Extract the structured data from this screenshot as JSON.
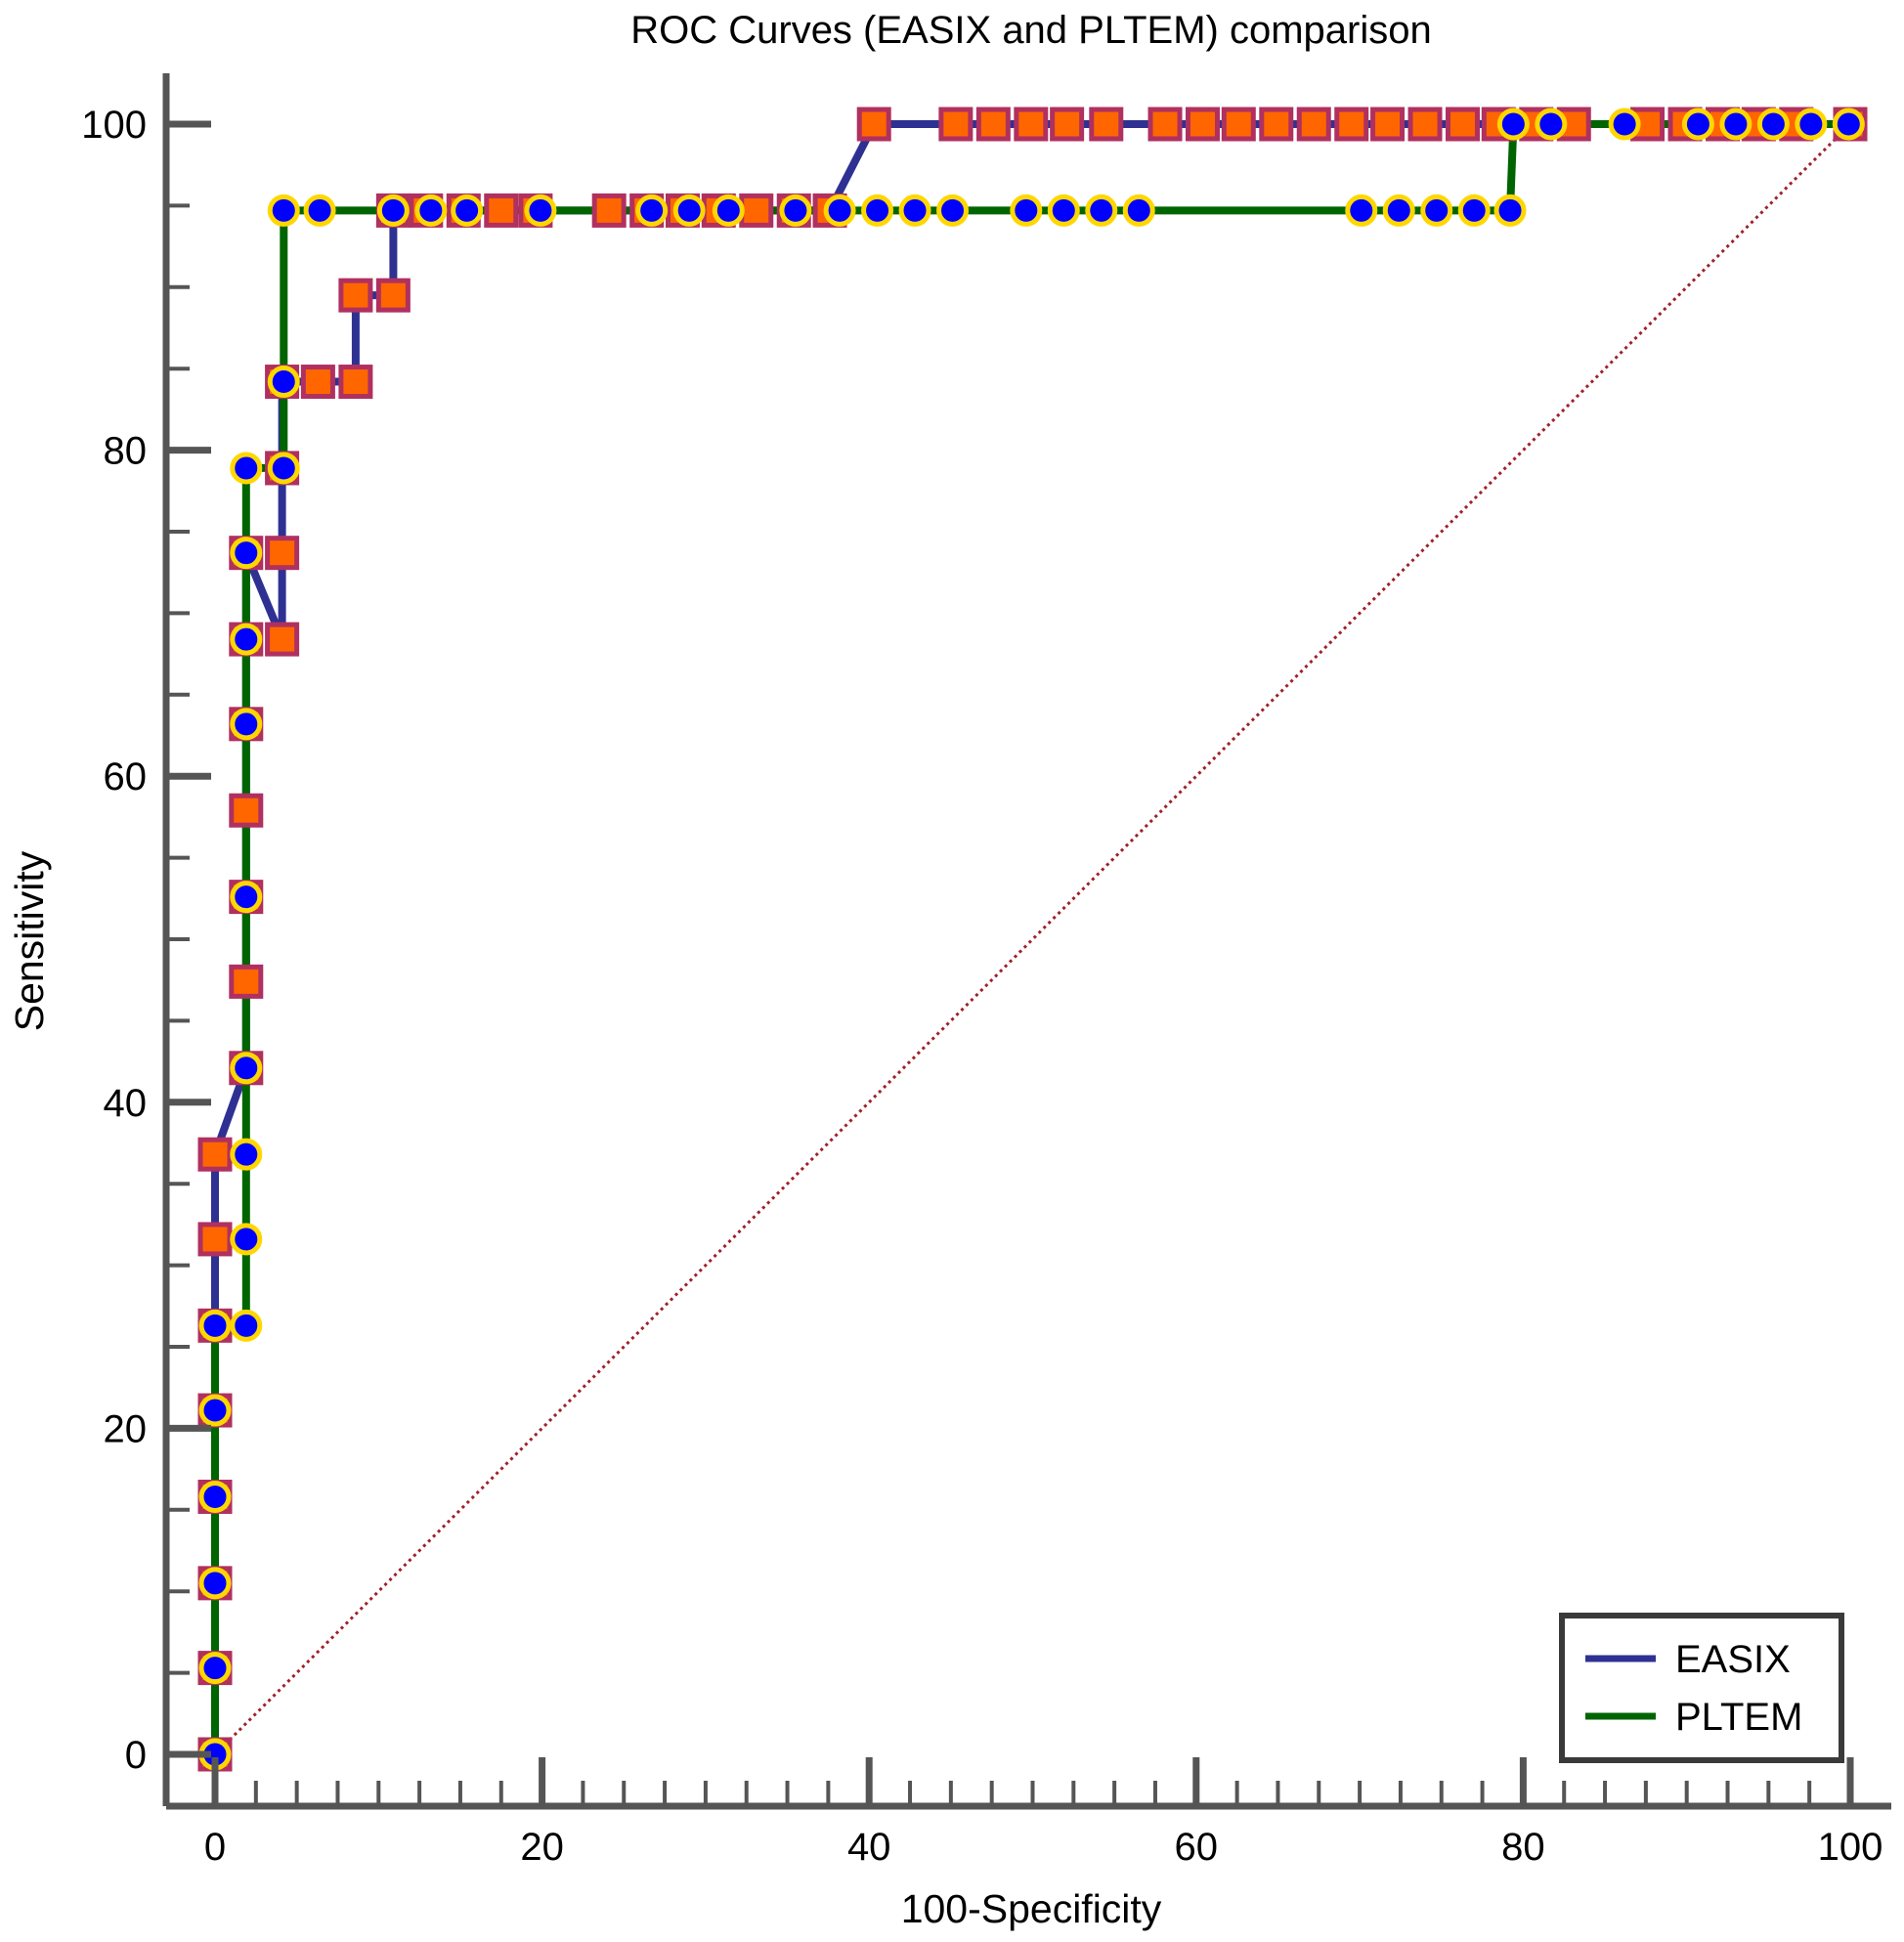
{
  "chart_data": {
    "type": "line",
    "title": "ROC Curves (EASIX and PLTEM) comparison",
    "xlabel": "100-Specificity",
    "ylabel": "Sensitivity",
    "xlim": [
      0,
      100
    ],
    "ylim": [
      0,
      100
    ],
    "xticks": [
      0,
      20,
      40,
      60,
      80,
      100
    ],
    "yticks": [
      0,
      20,
      40,
      60,
      80,
      100
    ],
    "x_tick_labels": [
      "0",
      "20",
      "40",
      "60",
      "80",
      "100"
    ],
    "y_tick_labels": [
      "0",
      "20",
      "40",
      "60",
      "80",
      "100"
    ],
    "grid": false,
    "legend_position": "bottom-right",
    "reference_line": {
      "from": [
        0,
        0
      ],
      "to": [
        100,
        100
      ],
      "style": "dotted",
      "color": "#a0202a"
    },
    "series": [
      {
        "name": "EASIX",
        "color": "#2e3192",
        "marker": "square",
        "marker_fill": "#ff6600",
        "marker_edge": "#b03060",
        "x": [
          0,
          0,
          0,
          0,
          0,
          0,
          0,
          0,
          1.9,
          1.9,
          1.9,
          1.9,
          1.9,
          1.9,
          1.9,
          4.1,
          4.1,
          4.1,
          4.1,
          6.3,
          8.6,
          8.6,
          10.9,
          10.9,
          12.9,
          15.2,
          17.5,
          19.6,
          24.1,
          26.4,
          28.6,
          30.8,
          33.1,
          35.4,
          37.6,
          40.3,
          45.3,
          47.6,
          49.9,
          52.1,
          54.5,
          58.1,
          60.4,
          62.6,
          64.9,
          67.2,
          69.5,
          71.7,
          74,
          76.3,
          78.5,
          80.8,
          83.1,
          87.6,
          89.9,
          92.2,
          94.4,
          96.7,
          100
        ],
        "y": [
          0,
          5.3,
          10.5,
          15.8,
          21.1,
          26.3,
          31.6,
          36.8,
          42.1,
          47.4,
          52.6,
          57.9,
          63.2,
          68.4,
          73.7,
          68.4,
          73.7,
          78.9,
          84.2,
          84.2,
          84.2,
          89.5,
          89.5,
          94.7,
          94.7,
          94.7,
          94.7,
          94.7,
          94.7,
          94.7,
          94.7,
          94.7,
          94.7,
          94.7,
          94.7,
          100,
          100,
          100,
          100,
          100,
          100,
          100,
          100,
          100,
          100,
          100,
          100,
          100,
          100,
          100,
          100,
          100,
          100,
          100,
          100,
          100,
          100,
          100,
          100
        ]
      },
      {
        "name": "PLTEM",
        "color": "#006400",
        "marker": "circle",
        "marker_fill": "#0000ff",
        "marker_edge": "#ffd700",
        "x": [
          0,
          0,
          0,
          0,
          0,
          0,
          1.9,
          1.9,
          1.9,
          1.9,
          1.9,
          1.9,
          1.9,
          1.9,
          1.9,
          4.2,
          4.2,
          4.2,
          6.4,
          10.9,
          13.2,
          15.4,
          19.9,
          26.7,
          29,
          31.4,
          35.5,
          38.2,
          40.5,
          42.8,
          45.1,
          49.6,
          51.9,
          54.2,
          56.5,
          70.1,
          72.4,
          74.7,
          77,
          79.2,
          79.4,
          81.7,
          86.2,
          90.7,
          93,
          95.3,
          97.6,
          99.9
        ],
        "y": [
          0,
          5.3,
          10.5,
          15.8,
          21.1,
          26.3,
          26.3,
          31.6,
          36.8,
          42.1,
          52.6,
          63.2,
          68.4,
          73.7,
          78.9,
          78.9,
          84.2,
          94.7,
          94.7,
          94.7,
          94.7,
          94.7,
          94.7,
          94.7,
          94.7,
          94.7,
          94.7,
          94.7,
          94.7,
          94.7,
          94.7,
          94.7,
          94.7,
          94.7,
          94.7,
          94.7,
          94.7,
          94.7,
          94.7,
          94.7,
          100,
          100,
          100,
          100,
          100,
          100,
          100,
          100
        ]
      }
    ]
  }
}
